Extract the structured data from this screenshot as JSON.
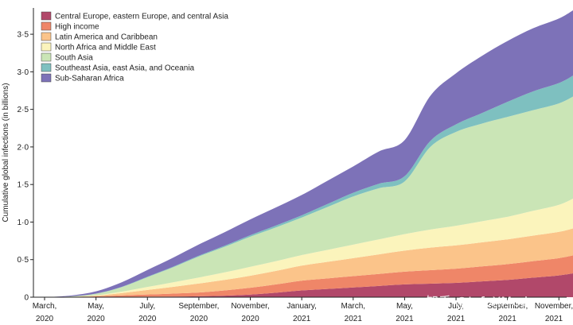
{
  "watermark": "知乎 @InfoXMed",
  "chart_data": {
    "type": "area",
    "stacked": true,
    "ylabel": "Cumulative global infections (in billions)",
    "xlabel": "",
    "ylim": [
      0,
      3.85
    ],
    "yticks": [
      0,
      0.5,
      1.0,
      1.5,
      2.0,
      2.5,
      3.0,
      3.5
    ],
    "ytick_labels": [
      "0",
      "0·5",
      "1·0",
      "1·5",
      "2·0",
      "2·5",
      "3·0",
      "3·5"
    ],
    "x_months": [
      0,
      2,
      4,
      6,
      8,
      10,
      12,
      14,
      16,
      18,
      20
    ],
    "xtick_labels": [
      [
        "March,",
        "2020"
      ],
      [
        "May,",
        "2020"
      ],
      [
        "July,",
        "2020"
      ],
      [
        "September,",
        "2020"
      ],
      [
        "November,",
        "2020"
      ],
      [
        "January,",
        "2021"
      ],
      [
        "March,",
        "2021"
      ],
      [
        "May,",
        "2021"
      ],
      [
        "July,",
        "2021"
      ],
      [
        "September,",
        "2021"
      ],
      [
        "November,",
        "2021"
      ]
    ],
    "x": [
      0,
      1,
      2,
      3,
      4,
      5,
      6,
      7,
      8,
      9,
      10,
      11,
      12,
      13,
      14,
      15,
      16,
      17,
      18,
      19,
      20,
      20.6
    ],
    "legend_position": "top-left",
    "series": [
      {
        "name": "Central Europe, eastern Europe, and central Asia",
        "color": "#b1486a",
        "values": [
          0,
          0,
          0.002,
          0.004,
          0.006,
          0.008,
          0.012,
          0.02,
          0.035,
          0.06,
          0.09,
          0.11,
          0.13,
          0.15,
          0.17,
          0.18,
          0.19,
          0.21,
          0.23,
          0.26,
          0.29,
          0.32
        ]
      },
      {
        "name": "High income",
        "color": "#ef8668",
        "values": [
          0,
          0.002,
          0.008,
          0.02,
          0.03,
          0.04,
          0.05,
          0.07,
          0.09,
          0.11,
          0.13,
          0.14,
          0.15,
          0.16,
          0.17,
          0.18,
          0.19,
          0.2,
          0.21,
          0.22,
          0.23,
          0.24
        ]
      },
      {
        "name": "Latin America and Caribbean",
        "color": "#fbc48a",
        "values": [
          0,
          0.002,
          0.01,
          0.03,
          0.06,
          0.09,
          0.12,
          0.14,
          0.16,
          0.18,
          0.2,
          0.22,
          0.24,
          0.26,
          0.28,
          0.3,
          0.31,
          0.32,
          0.33,
          0.34,
          0.35,
          0.36
        ]
      },
      {
        "name": "North Africa and Middle East",
        "color": "#fbf4bc",
        "values": [
          0,
          0.001,
          0.006,
          0.02,
          0.04,
          0.06,
          0.08,
          0.1,
          0.12,
          0.13,
          0.14,
          0.16,
          0.18,
          0.2,
          0.22,
          0.24,
          0.26,
          0.28,
          0.3,
          0.33,
          0.36,
          0.4
        ]
      },
      {
        "name": "South Asia",
        "color": "#cae5b6",
        "values": [
          0,
          0.005,
          0.02,
          0.06,
          0.13,
          0.2,
          0.28,
          0.34,
          0.4,
          0.45,
          0.5,
          0.57,
          0.64,
          0.68,
          0.7,
          1.1,
          1.25,
          1.3,
          1.33,
          1.34,
          1.35,
          1.36
        ]
      },
      {
        "name": "Southeast Asia, east Asia, and Oceania",
        "color": "#7ec0c0",
        "values": [
          0,
          0.001,
          0.002,
          0.004,
          0.006,
          0.008,
          0.01,
          0.015,
          0.02,
          0.025,
          0.03,
          0.04,
          0.05,
          0.06,
          0.07,
          0.08,
          0.1,
          0.14,
          0.2,
          0.25,
          0.27,
          0.28
        ]
      },
      {
        "name": "Sub-Saharan Africa",
        "color": "#7d72b8",
        "values": [
          0,
          0.01,
          0.03,
          0.06,
          0.09,
          0.12,
          0.15,
          0.18,
          0.21,
          0.24,
          0.27,
          0.31,
          0.35,
          0.43,
          0.48,
          0.6,
          0.68,
          0.76,
          0.81,
          0.84,
          0.86,
          0.87
        ]
      }
    ]
  }
}
